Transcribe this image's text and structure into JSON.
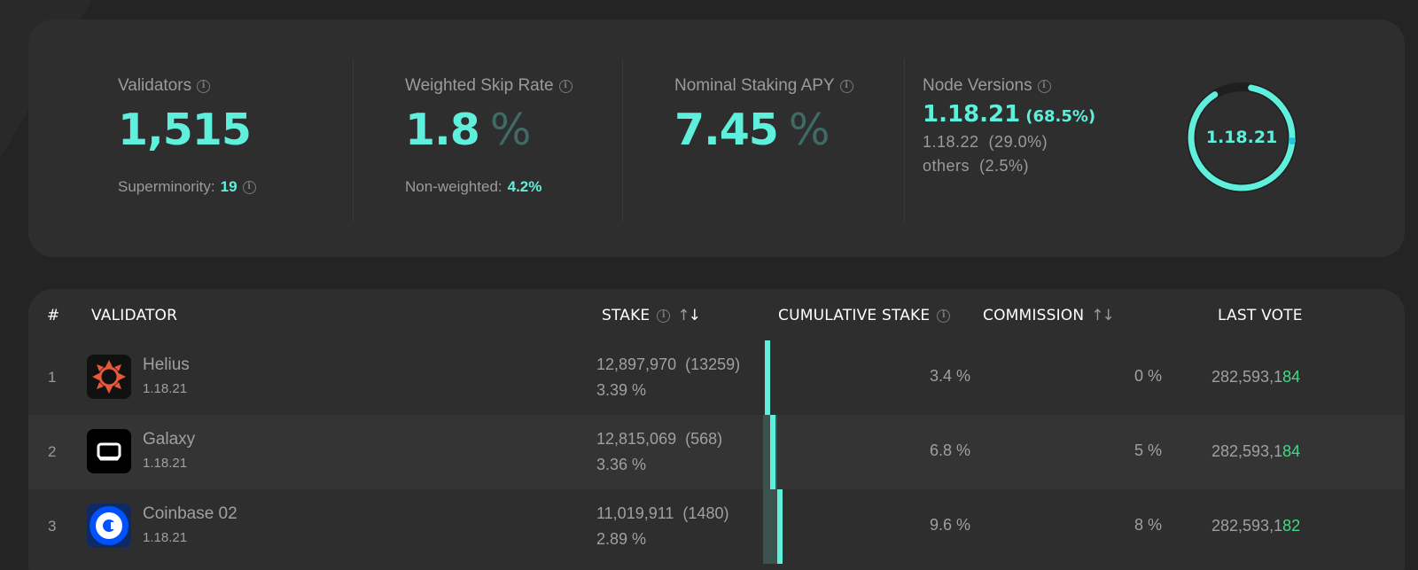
{
  "stats": {
    "validators": {
      "label": "Validators",
      "value": "1,515",
      "sub_label": "Superminority:",
      "sub_value": "19"
    },
    "skip_rate": {
      "label": "Weighted Skip Rate",
      "value": "1.8",
      "unit": "%",
      "sub_label": "Non-weighted:",
      "sub_value": "4.2%"
    },
    "apy": {
      "label": "Nominal Staking APY",
      "value": "7.45",
      "unit": "%"
    },
    "node_versions": {
      "label": "Node Versions",
      "main_version": "1.18.21",
      "main_pct": "(68.5%)",
      "line2": "1.18.22  (29.0%)",
      "line3": "others  (2.5%)",
      "ring_label": "1.18.21",
      "ring_fraction": 0.685
    }
  },
  "table": {
    "headers": {
      "rank": "#",
      "validator": "VALIDATOR",
      "stake": "STAKE",
      "cumulative": "CUMULATIVE STAKE",
      "commission": "COMMISSION",
      "last_vote": "LAST VOTE"
    },
    "rows": [
      {
        "rank": "1",
        "name": "Helius",
        "version": "1.18.21",
        "stake": "12,897,970",
        "delegators": "(13259)",
        "stake_pct": "3.39 %",
        "cumulative": "3.4 %",
        "commission": "0 %",
        "vote_prefix": "282,593,1",
        "vote_tail": "84",
        "logo": "helius-logo"
      },
      {
        "rank": "2",
        "name": "Galaxy",
        "version": "1.18.21",
        "stake": "12,815,069",
        "delegators": "(568)",
        "stake_pct": "3.36 %",
        "cumulative": "6.8 %",
        "commission": "5 %",
        "vote_prefix": "282,593,1",
        "vote_tail": "84",
        "logo": "galaxy-logo"
      },
      {
        "rank": "3",
        "name": "Coinbase 02",
        "version": "1.18.21",
        "stake": "11,019,911",
        "delegators": "(1480)",
        "stake_pct": "2.89 %",
        "cumulative": "9.6 %",
        "commission": "8 %",
        "vote_prefix": "282,593,1",
        "vote_tail": "82",
        "logo": "coinbase-logo"
      }
    ]
  },
  "colors": {
    "accent": "#5ef0dc",
    "vote_green": "#3ddc84",
    "bg": "#242424",
    "card": "#2e2e2e"
  }
}
